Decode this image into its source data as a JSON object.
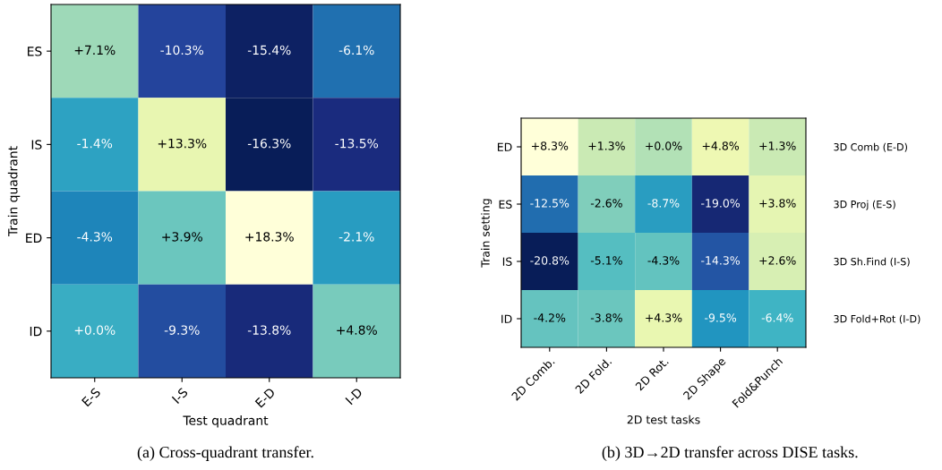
{
  "chart_data": [
    {
      "type": "heatmap",
      "xlabel": "Test quadrant",
      "ylabel": "Train quadrant",
      "categories": [
        "E-S",
        "I-S",
        "E-D",
        "I-D"
      ],
      "y_categories": [
        "ES",
        "IS",
        "ED",
        "ID"
      ],
      "cells": [
        [
          7.1,
          -10.3,
          -15.4,
          -6.1
        ],
        [
          -1.4,
          13.3,
          -16.3,
          -13.5
        ],
        [
          -4.3,
          3.9,
          18.3,
          -2.1
        ],
        [
          0.0,
          -9.3,
          -13.8,
          4.8
        ]
      ],
      "cell_labels": [
        [
          "+7.1%",
          "-10.3%",
          "-15.4%",
          "-6.1%"
        ],
        [
          "-1.4%",
          "+13.3%",
          "-16.3%",
          "-13.5%"
        ],
        [
          "-4.3%",
          "+3.9%",
          "+18.3%",
          "-2.1%"
        ],
        [
          "+0.0%",
          "-9.3%",
          "-13.8%",
          "+4.8%"
        ]
      ],
      "annotations": [
        "(a) Cross-quadrant transfer."
      ]
    },
    {
      "type": "heatmap",
      "xlabel": "2D test tasks",
      "ylabel": "Train setting",
      "categories": [
        "2D Comb.",
        "2D Fold.",
        "2D Rot.",
        "2D Shape",
        "Fold&Punch"
      ],
      "y_categories": [
        "ED",
        "ES",
        "IS",
        "ID"
      ],
      "y2_categories": [
        "3D Comb (E-D)",
        "3D Proj (E-S)",
        "3D Sh.Find (I-S)",
        "3D Fold+Rot (I-D)"
      ],
      "cells": [
        [
          8.3,
          1.3,
          0.0,
          4.8,
          1.3
        ],
        [
          -12.5,
          -2.6,
          -8.7,
          -19.0,
          3.8
        ],
        [
          -20.8,
          -5.1,
          -4.3,
          -14.3,
          2.6
        ],
        [
          -4.2,
          -3.8,
          4.3,
          -9.5,
          -6.4
        ]
      ],
      "cell_labels": [
        [
          "+8.3%",
          "+1.3%",
          "+0.0%",
          "+4.8%",
          "+1.3%"
        ],
        [
          "-12.5%",
          "-2.6%",
          "-8.7%",
          "-19.0%",
          "+3.8%"
        ],
        [
          "-20.8%",
          "-5.1%",
          "-4.3%",
          "-14.3%",
          "+2.6%"
        ],
        [
          "-4.2%",
          "-3.8%",
          "+4.3%",
          "-9.5%",
          "-6.4%"
        ]
      ],
      "annotations": [
        "(b) 3D→2D transfer across DISE tasks."
      ]
    }
  ]
}
